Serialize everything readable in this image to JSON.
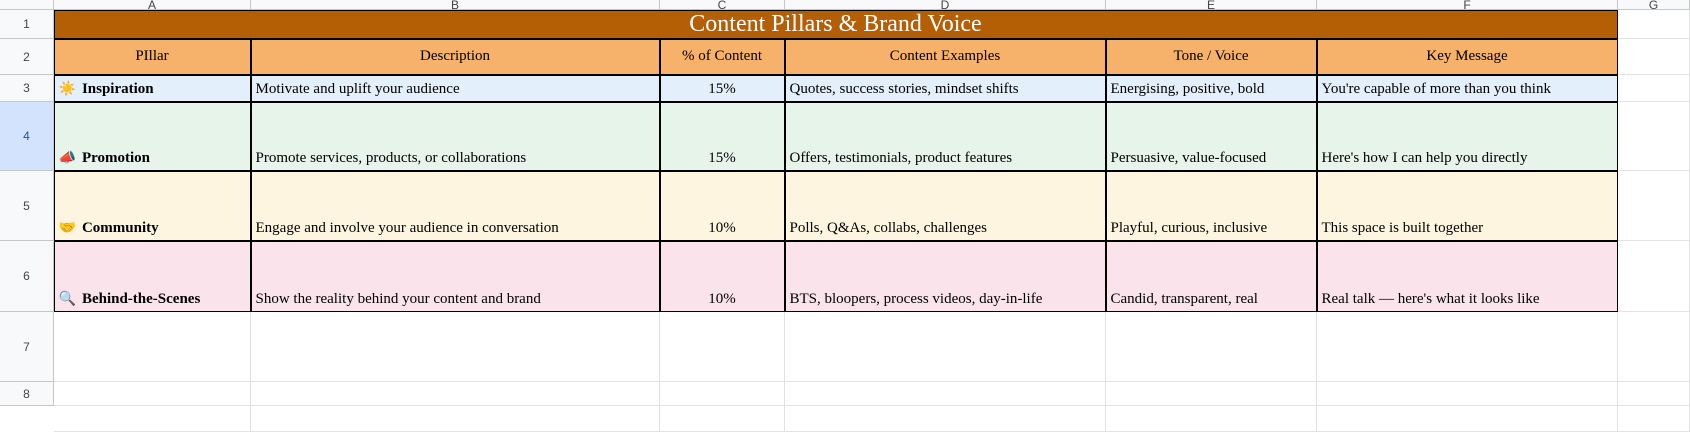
{
  "column_headers": [
    "A",
    "B",
    "C",
    "D",
    "E",
    "F",
    "G"
  ],
  "row_numbers": [
    1,
    2,
    3,
    4,
    5,
    6,
    7,
    8
  ],
  "table": {
    "title": "Content Pillars & Brand Voice",
    "header": [
      "PIllar",
      "Description",
      "% of Content",
      "Content Examples",
      "Tone / Voice",
      "Key Message"
    ],
    "rows": [
      {
        "icon": "☀️",
        "pillar": "Inspiration",
        "description": "Motivate and uplift your audience",
        "percent": "15%",
        "examples": "Quotes, success stories, mindset shifts",
        "tone": "Energising, positive, bold",
        "message": "You're capable of more than you think"
      },
      {
        "icon": "📣",
        "pillar": "Promotion",
        "description": "Promote services, products, or collaborations",
        "percent": "15%",
        "examples": "Offers, testimonials, product features",
        "tone": "Persuasive, value-focused",
        "message": "Here's how I can help you directly"
      },
      {
        "icon": "🤝",
        "pillar": "Community",
        "description": "Engage and involve your audience in conversation",
        "percent": "10%",
        "examples": "Polls, Q&As, collabs, challenges",
        "tone": "Playful, curious, inclusive",
        "message": "This space is built together"
      },
      {
        "icon": "🔍",
        "pillar": "Behind-the-Scenes",
        "description": "Show the reality behind your content and brand",
        "percent": "10%",
        "examples": "BTS, bloopers, process videos, day-in-life",
        "tone": "Candid, transparent, real",
        "message": "Real talk — here's what it looks like"
      }
    ]
  }
}
